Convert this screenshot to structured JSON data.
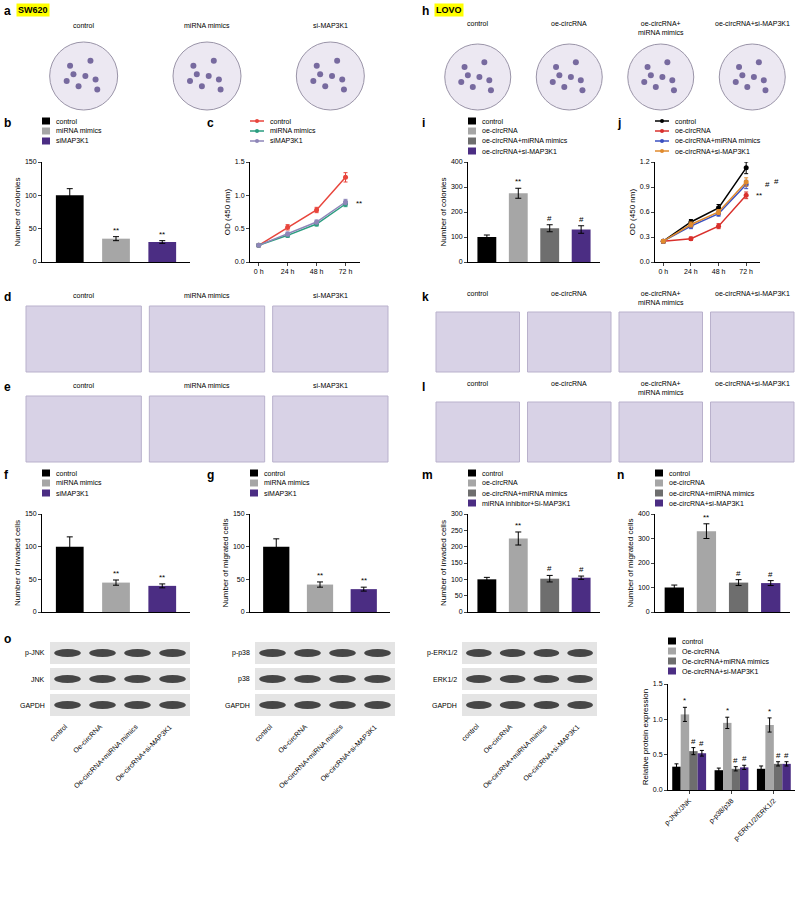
{
  "figure": {
    "image_panels": [
      {
        "label": "a",
        "title": "SW620",
        "captions": [
          "control",
          "miRNA mimics",
          "si-MAP3K1"
        ]
      },
      {
        "label": "h",
        "title": "LOVO",
        "captions": [
          "control",
          "oe-circRNA",
          "oe-circRNA+\nmiRNA mimics",
          "oe-circRNA+si-MAP3K1"
        ]
      },
      {
        "label": "d",
        "captions": [
          "control",
          "miRNA mimics",
          "si-MAP3K1"
        ]
      },
      {
        "label": "k",
        "captions": [
          "control",
          "oe-circRNA",
          "oe-circRNA+\nmiRNA mimics",
          "oe-circRNA+si-MAP3K1"
        ]
      },
      {
        "label": "e",
        "captions": [
          "control",
          "miRNA mimics",
          "si-MAP3K1"
        ]
      },
      {
        "label": "l",
        "captions": [
          "control",
          "oe-circRNA",
          "oe-circRNA+\nmiRNA mimics",
          "oe-circRNA+si-MAP3K1"
        ]
      }
    ],
    "blots": {
      "label": "o",
      "groups": [
        [
          "p-JNK",
          "JNK",
          "GAPDH"
        ],
        [
          "p-p38",
          "p38",
          "GAPDH"
        ],
        [
          "p-ERK1/2",
          "ERK1/2",
          "GAPDH"
        ]
      ],
      "lanes": [
        "control",
        "Oe-circRNA",
        "Oe-circRNA+miRNA mimics",
        "Oe-circRNA+si-MAP3K1"
      ]
    }
  },
  "chart_data": [
    {
      "label": "b",
      "type": "bar",
      "ylabel": "Number of colonies",
      "categories": [
        "control",
        "miRNA mimics",
        "siMAP3K1"
      ],
      "values": [
        100,
        35,
        30
      ],
      "errors": [
        10,
        3,
        2
      ],
      "colors": [
        "#000000",
        "#a6a6a6",
        "#4b2d83"
      ],
      "significance": [
        null,
        "**",
        "**"
      ],
      "ylim": [
        0,
        150
      ],
      "yticks": [
        0,
        50,
        100,
        150
      ],
      "grid": false,
      "legend": "top left",
      "tick_labels": "y"
    },
    {
      "label": "c",
      "type": "line",
      "ylabel": "OD (450 nm)",
      "categories": [
        "0 h",
        "24 h",
        "48 h",
        "72 h"
      ],
      "series": [
        {
          "name": "control",
          "color": "#e8453c",
          "values": [
            0.25,
            0.52,
            0.78,
            1.27
          ],
          "errors": [
            0.02,
            0.04,
            0.04,
            0.07
          ]
        },
        {
          "name": "miRNA mimics",
          "color": "#2a9d7f",
          "values": [
            0.25,
            0.4,
            0.57,
            0.87
          ],
          "errors": [
            0.02,
            0.03,
            0.03,
            0.04
          ],
          "significance": [
            null,
            null,
            null,
            "**"
          ]
        },
        {
          "name": "siMAP3K1",
          "color": "#8e86b8",
          "values": [
            0.25,
            0.42,
            0.6,
            0.9
          ],
          "errors": [
            0.02,
            0.03,
            0.03,
            0.04
          ]
        }
      ],
      "ylim": [
        0,
        1.5
      ],
      "yticks": [
        {
          "value": 0,
          "label": "0.0"
        },
        0.5,
        {
          "value": 1,
          "label": "1.0"
        },
        1.5
      ],
      "marker": "circle",
      "grid": false,
      "legend": "top left"
    },
    {
      "label": "i",
      "type": "bar",
      "ylabel": "Number of colonies",
      "categories": [
        "control",
        "oe-circRNA",
        "oe-circRNA+miRNA mimics",
        "oe-circRNA+si-MAP3K1"
      ],
      "values": [
        100,
        275,
        135,
        130
      ],
      "errors": [
        8,
        20,
        14,
        15
      ],
      "colors": [
        "#000000",
        "#a6a6a6",
        "#6e6e6e",
        "#4b2d83"
      ],
      "significance": [
        null,
        "**",
        "#",
        "#"
      ],
      "ylim": [
        0,
        400
      ],
      "yticks": [
        0,
        100,
        200,
        300,
        400
      ],
      "grid": false,
      "legend": "top left",
      "tick_labels": "y"
    },
    {
      "label": "j",
      "type": "line",
      "ylabel": "OD (450 nm)",
      "categories": [
        "0 h",
        "24 h",
        "48 h",
        "72 h"
      ],
      "series": [
        {
          "name": "control",
          "color": "#000000",
          "values": [
            0.25,
            0.48,
            0.65,
            1.13
          ],
          "errors": [
            0.02,
            0.03,
            0.04,
            0.07
          ]
        },
        {
          "name": "oe-circRNA",
          "color": "#d9302c",
          "values": [
            0.25,
            0.28,
            0.43,
            0.8
          ],
          "errors": [
            0.02,
            0.02,
            0.03,
            0.04
          ],
          "significance": [
            null,
            null,
            null,
            "**"
          ]
        },
        {
          "name": "oe-circRNA+miRNA mimics",
          "color": "#3a4fc0",
          "values": [
            0.25,
            0.43,
            0.58,
            0.93
          ],
          "errors": [
            0.02,
            0.03,
            0.03,
            0.05
          ],
          "significance": [
            null,
            null,
            null,
            "#"
          ]
        },
        {
          "name": "oe-circRNA+si-MAP3K1",
          "color": "#e08a2c",
          "values": [
            0.25,
            0.45,
            0.6,
            0.96
          ],
          "errors": [
            0.02,
            0.03,
            0.03,
            0.05
          ],
          "significance": [
            null,
            null,
            null,
            "#"
          ]
        }
      ],
      "ylim": [
        0,
        1.2
      ],
      "yticks": [
        {
          "value": 0,
          "label": "0.0"
        },
        0.3,
        0.6,
        0.9,
        1.2
      ],
      "marker": "circle",
      "grid": false,
      "legend": "top left"
    },
    {
      "label": "f",
      "type": "bar",
      "ylabel": "Number of invaded cells",
      "categories": [
        "control",
        "miRNA mimics",
        "siMAP3K1"
      ],
      "values": [
        100,
        45,
        40
      ],
      "errors": [
        15,
        4,
        3
      ],
      "colors": [
        "#000000",
        "#a6a6a6",
        "#4b2d83"
      ],
      "significance": [
        null,
        "**",
        "**"
      ],
      "ylim": [
        0,
        150
      ],
      "yticks": [
        0,
        50,
        100,
        150
      ],
      "grid": false,
      "legend": "top left",
      "tick_labels": "y"
    },
    {
      "label": "g",
      "type": "bar",
      "ylabel": "Number of migrated cells",
      "categories": [
        "control",
        "miRNA mimics",
        "siMAP3K1"
      ],
      "values": [
        100,
        42,
        35
      ],
      "errors": [
        12,
        4,
        3
      ],
      "colors": [
        "#000000",
        "#a6a6a6",
        "#4b2d83"
      ],
      "significance": [
        null,
        "**",
        "**"
      ],
      "ylim": [
        0,
        150
      ],
      "yticks": [
        0,
        50,
        100,
        150
      ],
      "grid": false,
      "legend": "top left",
      "tick_labels": "y"
    },
    {
      "label": "m",
      "type": "bar",
      "ylabel": "Number of invaded cells",
      "categories": [
        "control",
        "oe-circRNA",
        "oe-circRNA+miRNA mimics",
        "miRNA inhibitor+Si-MAP3K1"
      ],
      "values": [
        100,
        225,
        102,
        105
      ],
      "errors": [
        6,
        20,
        10,
        5
      ],
      "colors": [
        "#000000",
        "#a6a6a6",
        "#6e6e6e",
        "#4b2d83"
      ],
      "significance": [
        null,
        "**",
        "#",
        "#"
      ],
      "ylim": [
        0,
        300
      ],
      "yticks": [
        0,
        50,
        100,
        150,
        200,
        250,
        300
      ],
      "grid": false,
      "legend": "top left",
      "tick_labels": "y"
    },
    {
      "label": "n",
      "type": "bar",
      "ylabel": "Number of migrated cells",
      "categories": [
        "control",
        "oe-circRNA",
        "oe-circRNA+miRNA mimics",
        "oe-circRNA+si-MAP3K1"
      ],
      "values": [
        100,
        330,
        120,
        118
      ],
      "errors": [
        10,
        30,
        12,
        10
      ],
      "colors": [
        "#000000",
        "#a6a6a6",
        "#6e6e6e",
        "#4b2d83"
      ],
      "significance": [
        null,
        "**",
        "#",
        "#"
      ],
      "ylim": [
        0,
        400
      ],
      "yticks": [
        0,
        100,
        200,
        300,
        400
      ],
      "grid": false,
      "legend": "top left",
      "tick_labels": "y"
    },
    {
      "type": "bar",
      "ylabel": "Relative protein expression",
      "categories": [
        "p-JNK/JNK",
        "p-p38/p38",
        "p-ERK1/2/ERK1/2"
      ],
      "series": [
        {
          "name": "control",
          "color": "#000000",
          "values": [
            0.33,
            0.28,
            0.3
          ],
          "errors": [
            0.04,
            0.03,
            0.04
          ]
        },
        {
          "name": "Oe-circRNA",
          "color": "#a6a6a6",
          "values": [
            1.07,
            0.95,
            0.92
          ],
          "errors": [
            0.1,
            0.08,
            0.1
          ],
          "significance": [
            "*",
            "*",
            "*"
          ]
        },
        {
          "name": "Oe-circRNA+miRNA mimics",
          "color": "#6e6e6e",
          "values": [
            0.55,
            0.3,
            0.37
          ],
          "errors": [
            0.05,
            0.03,
            0.03
          ],
          "significance": [
            "#",
            "#",
            "#"
          ]
        },
        {
          "name": "Oe-circRNA+si-MAP3K1",
          "color": "#4b2d83",
          "values": [
            0.52,
            0.32,
            0.37
          ],
          "errors": [
            0.04,
            0.03,
            0.03
          ],
          "significance": [
            "#",
            "#",
            "#"
          ]
        }
      ],
      "ylim": [
        0,
        1.5
      ],
      "yticks": [
        {
          "value": 0,
          "label": "0.0"
        },
        0.5,
        {
          "value": 1,
          "label": "1.0"
        },
        1.5
      ],
      "grid": false,
      "legend": "top left"
    }
  ]
}
